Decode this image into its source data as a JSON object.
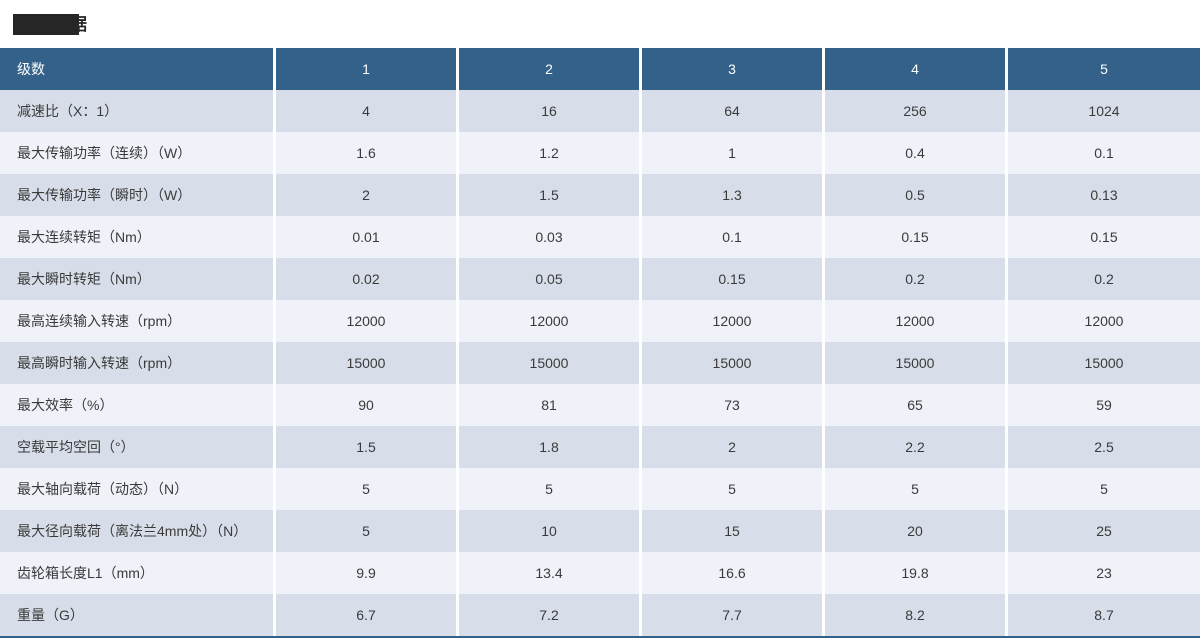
{
  "title": {
    "redacted": true,
    "partial_char": "据"
  },
  "colors": {
    "header_bg": "#336189",
    "header_text": "#ffffff",
    "row_odd_bg": "#d8dee9",
    "row_even_bg": "#eff2f9",
    "body_text": "#3a3a3a",
    "redaction_bar": "#262626"
  },
  "table": {
    "header": [
      "级数",
      "1",
      "2",
      "3",
      "4",
      "5"
    ],
    "rows": [
      {
        "label": "减速比（X：1）",
        "values": [
          "4",
          "16",
          "64",
          "256",
          "1024"
        ]
      },
      {
        "label": "最大传输功率（连续）（W）",
        "values": [
          "1.6",
          "1.2",
          "1",
          "0.4",
          "0.1"
        ]
      },
      {
        "label": "最大传输功率（瞬时）（W）",
        "values": [
          "2",
          "1.5",
          "1.3",
          "0.5",
          "0.13"
        ]
      },
      {
        "label": "最大连续转矩（Nm）",
        "values": [
          "0.01",
          "0.03",
          "0.1",
          "0.15",
          "0.15"
        ]
      },
      {
        "label": "最大瞬时转矩（Nm）",
        "values": [
          "0.02",
          "0.05",
          "0.15",
          "0.2",
          "0.2"
        ]
      },
      {
        "label": "最高连续输入转速（rpm）",
        "values": [
          "12000",
          "12000",
          "12000",
          "12000",
          "12000"
        ]
      },
      {
        "label": "最高瞬时输入转速（rpm）",
        "values": [
          "15000",
          "15000",
          "15000",
          "15000",
          "15000"
        ]
      },
      {
        "label": "最大效率（%）",
        "values": [
          "90",
          "81",
          "73",
          "65",
          "59"
        ]
      },
      {
        "label": "空载平均空回（°）",
        "values": [
          "1.5",
          "1.8",
          "2",
          "2.2",
          "2.5"
        ]
      },
      {
        "label": "最大轴向载荷（动态）（N）",
        "values": [
          "5",
          "5",
          "5",
          "5",
          "5"
        ]
      },
      {
        "label": "最大径向载荷（离法兰4mm处）（N）",
        "values": [
          "5",
          "10",
          "15",
          "20",
          "25"
        ]
      },
      {
        "label": "齿轮箱长度L1（mm）",
        "values": [
          "9.9",
          "13.4",
          "16.6",
          "19.8",
          "23"
        ]
      },
      {
        "label": "重量（G）",
        "values": [
          "6.7",
          "7.2",
          "7.7",
          "8.2",
          "8.7"
        ]
      }
    ]
  }
}
